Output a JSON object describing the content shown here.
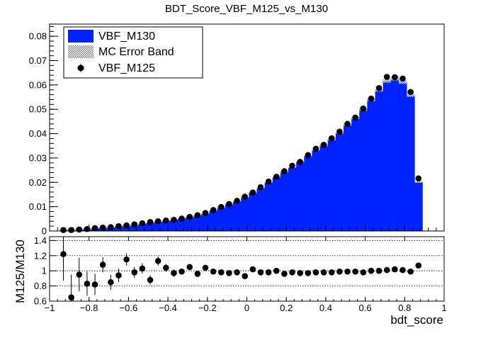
{
  "chart_data": {
    "type": "histogram",
    "title": "BDT_Score_VBF_M125_vs_M130",
    "xlabel": "bdt_score",
    "ratio_ylabel": "M125/M130",
    "xlim": [
      -1,
      1
    ],
    "ylim": [
      0,
      0.085
    ],
    "ratio_ylim": [
      0.6,
      1.45
    ],
    "x_ticks": [
      "−1",
      "−0.8",
      "−0.6",
      "−0.4",
      "−0.2",
      "0",
      "0.2",
      "0.4",
      "0.6",
      "0.8",
      "1"
    ],
    "x_tick_values": [
      -1,
      -0.8,
      -0.6,
      -0.4,
      -0.2,
      0,
      0.2,
      0.4,
      0.6,
      0.8,
      1
    ],
    "y_ticks": [
      "0",
      "0.01",
      "0.02",
      "0.03",
      "0.04",
      "0.05",
      "0.06",
      "0.07",
      "0.08"
    ],
    "y_tick_values": [
      0,
      0.01,
      0.02,
      0.03,
      0.04,
      0.05,
      0.06,
      0.07,
      0.08
    ],
    "ratio_y_ticks": [
      "0.6",
      "0.8",
      "1",
      "1.2",
      "1.4"
    ],
    "ratio_y_tick_values": [
      0.6,
      0.8,
      1.0,
      1.2,
      1.4
    ],
    "bin_edges": [
      -0.95,
      -0.91,
      -0.87,
      -0.83,
      -0.79,
      -0.75,
      -0.71,
      -0.67,
      -0.63,
      -0.59,
      -0.55,
      -0.51,
      -0.47,
      -0.43,
      -0.39,
      -0.35,
      -0.31,
      -0.27,
      -0.23,
      -0.19,
      -0.15,
      -0.11,
      -0.07,
      -0.03,
      0.01,
      0.05,
      0.09,
      0.13,
      0.17,
      0.21,
      0.25,
      0.29,
      0.33,
      0.37,
      0.41,
      0.45,
      0.49,
      0.53,
      0.57,
      0.61,
      0.65,
      0.69,
      0.73,
      0.77,
      0.81,
      0.85,
      0.89,
      0.93
    ],
    "legend": {
      "position": "top-left",
      "entries": [
        "VBF_M130",
        "MC Error Band",
        "VBF_M125"
      ]
    },
    "colors": {
      "fill": "#0022ff",
      "points": "#000000",
      "grid": "#000000"
    },
    "series": [
      {
        "name": "VBF_M130",
        "values": [
          0.0004,
          0.0005,
          0.0007,
          0.0009,
          0.0012,
          0.0014,
          0.0016,
          0.0019,
          0.0022,
          0.0026,
          0.0031,
          0.0035,
          0.0039,
          0.0043,
          0.0047,
          0.0052,
          0.0058,
          0.0065,
          0.0073,
          0.0085,
          0.0097,
          0.0111,
          0.0122,
          0.0139,
          0.0158,
          0.0177,
          0.02,
          0.0222,
          0.0243,
          0.0262,
          0.0285,
          0.0309,
          0.0334,
          0.0353,
          0.0377,
          0.0404,
          0.0437,
          0.0465,
          0.05,
          0.054,
          0.058,
          0.0617,
          0.0626,
          0.0612,
          0.0558,
          0.0201
        ]
      },
      {
        "name": "VBF_M125",
        "values": [
          0.0004,
          0.0004,
          0.0006,
          0.0008,
          0.0012,
          0.0014,
          0.0016,
          0.002,
          0.0023,
          0.0027,
          0.0032,
          0.0037,
          0.004,
          0.0043,
          0.0046,
          0.0051,
          0.0058,
          0.0065,
          0.0074,
          0.0086,
          0.0099,
          0.0111,
          0.0124,
          0.0141,
          0.0158,
          0.018,
          0.0203,
          0.0223,
          0.0246,
          0.0268,
          0.0284,
          0.0312,
          0.0338,
          0.0354,
          0.0381,
          0.0408,
          0.044,
          0.0466,
          0.0503,
          0.0544,
          0.0587,
          0.0633,
          0.0632,
          0.0626,
          0.0571,
          0.0216
        ]
      },
      {
        "name": "M125/M130",
        "values": [
          1.22,
          0.65,
          0.95,
          0.83,
          0.82,
          1.08,
          0.85,
          0.94,
          1.15,
          0.98,
          1.03,
          0.88,
          1.13,
          1.04,
          0.97,
          0.99,
          1.05,
          0.96,
          1.04,
          0.99,
          0.98,
          0.97,
          0.98,
          0.93,
          1.02,
          0.98,
          0.98,
          1.0,
          0.96,
          0.98,
          0.97,
          0.97,
          0.98,
          0.98,
          0.98,
          0.99,
          0.99,
          0.99,
          0.98,
          1.0,
          1.0,
          1.01,
          1.02,
          1.01,
          0.99,
          1.07
        ],
        "errors": [
          0.35,
          0.3,
          0.22,
          0.16,
          0.14,
          0.1,
          0.1,
          0.09,
          0.08,
          0.07,
          0.07,
          0.06,
          0.06,
          0.05,
          0.05,
          0.04,
          0.04,
          0.04,
          0.03,
          0.03,
          0.03,
          0.03,
          0.025,
          0.025,
          0.02,
          0.02,
          0.02,
          0.02,
          0.015,
          0.015,
          0.015,
          0.015,
          0.01,
          0.01,
          0.01,
          0.01,
          0.01,
          0.01,
          0.01,
          0.01,
          0.01,
          0.01,
          0.01,
          0.01,
          0.01,
          0.015
        ]
      }
    ]
  }
}
